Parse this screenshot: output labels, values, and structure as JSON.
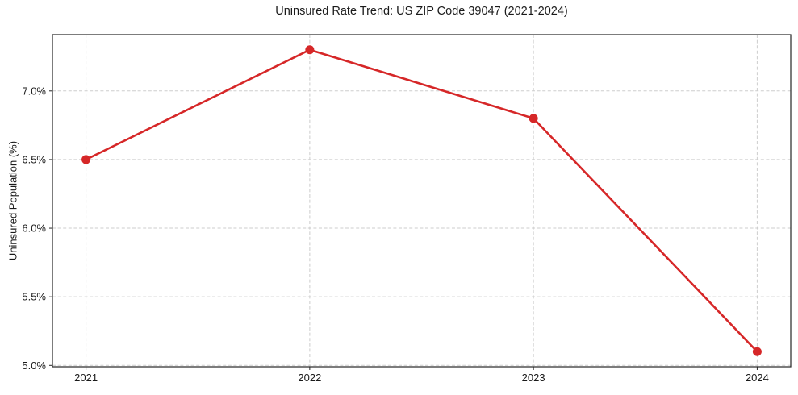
{
  "chart_data": {
    "type": "line",
    "title": "Uninsured Rate Trend: US ZIP Code 39047 (2021-2024)",
    "xlabel": "",
    "ylabel": "Uninsured Population (%)",
    "x": [
      2021,
      2022,
      2023,
      2024
    ],
    "values": [
      6.5,
      7.3,
      6.8,
      5.1
    ],
    "xticks": [
      2021,
      2022,
      2023,
      2024
    ],
    "xtick_labels": [
      "2021",
      "2022",
      "2023",
      "2024"
    ],
    "yticks": [
      5.0,
      5.5,
      6.0,
      6.5,
      7.0
    ],
    "ytick_labels": [
      "5.0%",
      "5.5%",
      "6.0%",
      "6.5%",
      "7.0%"
    ],
    "xlim": [
      2020.85,
      2024.15
    ],
    "ylim": [
      4.99,
      7.41
    ],
    "grid": true,
    "legend": "none",
    "line_color": "#d62728",
    "marker": "circle",
    "grid_color": "#cdcdcd",
    "text_color": "#1a1a1a",
    "background_color": "#ffffff"
  }
}
